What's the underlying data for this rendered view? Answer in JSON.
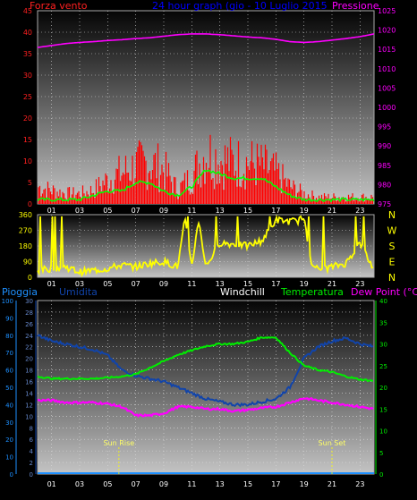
{
  "header": {
    "left_label": "Forza vento",
    "title": "24 hour graph (gio - 10 Luglio 2015",
    "right_label": "Pressione"
  },
  "wind_panel": {
    "left_ticks": [
      "45",
      "40",
      "35",
      "30",
      "25",
      "20",
      "15",
      "10",
      "5",
      "0"
    ],
    "right_ticks": [
      "1025",
      "1020",
      "1015",
      "1010",
      "1005",
      "1000",
      "995",
      "990",
      "985",
      "980",
      "975"
    ]
  },
  "direction_panel": {
    "left_ticks": [
      "360",
      "270",
      "180",
      "90",
      "0"
    ],
    "compass": [
      "N",
      "W",
      "S",
      "E",
      "N"
    ]
  },
  "legend": {
    "rain": "Pioggia",
    "humidity": "Umidita",
    "windchill": "Windchill",
    "temperature": "Temperatura",
    "dewpoint": "Dew Point (°C)"
  },
  "temp_panel": {
    "rain_ticks": [
      "100",
      "90",
      "80",
      "70",
      "60",
      "50",
      "40",
      "30",
      "20",
      "10",
      "0"
    ],
    "humidity_ticks": [
      "30",
      "28",
      "26",
      "24",
      "22",
      "20",
      "18",
      "16",
      "14",
      "12",
      "10",
      "8",
      "6",
      "4",
      "2",
      "0"
    ],
    "temp_ticks": [
      "40",
      "35",
      "30",
      "25",
      "20",
      "15",
      "10",
      "5",
      "0"
    ],
    "sunrise": "Sun Rise",
    "sunset": "Sun Set"
  },
  "x_ticks": [
    "01",
    "03",
    "05",
    "07",
    "09",
    "11",
    "13",
    "15",
    "17",
    "19",
    "21",
    "23"
  ],
  "colors": {
    "wind": "#ff0000",
    "wind_avg": "#00ff00",
    "pressure": "#ff00ff",
    "direction": "#ffff00",
    "humidity": "#1144aa",
    "temperature": "#00ee00",
    "dewpoint": "#ff00ff",
    "rain": "#1e90ff",
    "title": "#0000ff",
    "windchill": "#ffffff"
  },
  "chart_data": [
    {
      "type": "line",
      "title": "24 hour graph (gio - 10 Luglio 2015",
      "x": [
        0,
        1,
        2,
        3,
        4,
        5,
        6,
        7,
        8,
        9,
        10,
        11,
        12,
        13,
        14,
        15,
        16,
        17,
        18,
        19,
        20,
        21,
        22,
        23,
        24
      ],
      "series": [
        {
          "name": "Forza vento",
          "axis": "left",
          "values": [
            5,
            4,
            3,
            3,
            4,
            7,
            9,
            11,
            12,
            10,
            4,
            8,
            15,
            13,
            12,
            12,
            11,
            9,
            5,
            3,
            2,
            2,
            2,
            2,
            2
          ]
        },
        {
          "name": "Forza vento (media)",
          "axis": "left",
          "values": [
            1,
            1,
            1,
            1,
            2,
            3,
            3,
            5,
            5,
            3,
            2,
            4,
            8,
            7,
            6,
            6,
            6,
            4,
            2,
            1,
            1,
            1,
            1,
            1,
            1
          ]
        },
        {
          "name": "Pressione",
          "axis": "right",
          "values": [
            1015.5,
            1016,
            1016.5,
            1016.8,
            1017,
            1017.3,
            1017.5,
            1017.8,
            1018,
            1018.4,
            1018.8,
            1019,
            1019,
            1018.8,
            1018.5,
            1018.2,
            1018,
            1017.6,
            1017,
            1016.8,
            1017,
            1017.4,
            1017.8,
            1018.3,
            1019
          ]
        }
      ],
      "ylim_left": [
        0,
        45
      ],
      "ylim_right": [
        975,
        1025
      ]
    },
    {
      "type": "line",
      "x": [
        0,
        1,
        2,
        3,
        4,
        5,
        6,
        7,
        8,
        9,
        10,
        10.5,
        11,
        11.5,
        12,
        13,
        14,
        15,
        16,
        17,
        18,
        19,
        19.5,
        20,
        21,
        22,
        23,
        24
      ],
      "series": [
        {
          "name": "Direzione vento",
          "values": [
            40,
            50,
            60,
            30,
            40,
            50,
            70,
            60,
            80,
            90,
            60,
            330,
            70,
            330,
            60,
            200,
            190,
            180,
            210,
            330,
            320,
            330,
            100,
            40,
            60,
            80,
            200,
            40
          ]
        }
      ],
      "ylim": [
        0,
        360
      ]
    },
    {
      "type": "line",
      "x": [
        0,
        1,
        2,
        3,
        4,
        5,
        6,
        7,
        8,
        9,
        10,
        11,
        12,
        13,
        14,
        15,
        16,
        17,
        18,
        19,
        20,
        21,
        22,
        23,
        24
      ],
      "series": [
        {
          "name": "Umidita",
          "axis": "humidity",
          "values": [
            24,
            23,
            22.5,
            22,
            21.5,
            20.5,
            18,
            17,
            16.5,
            16,
            15,
            14,
            13,
            12.5,
            12,
            12,
            12.5,
            13,
            15,
            20,
            22,
            23,
            23.5,
            22.5,
            22
          ]
        },
        {
          "name": "Temperatura",
          "axis": "temp",
          "values": [
            22.5,
            22,
            22,
            22,
            22,
            22.2,
            22.5,
            23,
            24.5,
            26,
            27.5,
            28.5,
            29.5,
            30,
            30,
            30.5,
            31.5,
            31.5,
            28,
            25,
            24,
            23.5,
            22.5,
            21.8,
            21.5
          ]
        },
        {
          "name": "Dew Point",
          "axis": "temp",
          "values": [
            17,
            17,
            16.5,
            16.5,
            16.5,
            16.2,
            15.5,
            13.5,
            13.5,
            14,
            15.5,
            15.5,
            15,
            15,
            14.5,
            14.8,
            15.2,
            15.5,
            16.5,
            17.5,
            17,
            16.5,
            16,
            15.5,
            15
          ]
        },
        {
          "name": "Pioggia",
          "axis": "rain",
          "values": [
            0,
            0,
            0,
            0,
            0,
            0,
            0,
            0,
            0,
            0,
            0,
            0,
            0,
            0,
            0,
            0,
            0,
            0,
            0,
            0,
            0,
            0,
            0,
            0,
            0
          ]
        }
      ],
      "ylim_rain": [
        0,
        100
      ],
      "ylim_humidity": [
        0,
        30
      ],
      "ylim_temp": [
        0,
        40
      ],
      "annotations": [
        {
          "text": "Sun Rise",
          "x": 5.8
        },
        {
          "text": "Sun Set",
          "x": 21
        }
      ]
    }
  ]
}
